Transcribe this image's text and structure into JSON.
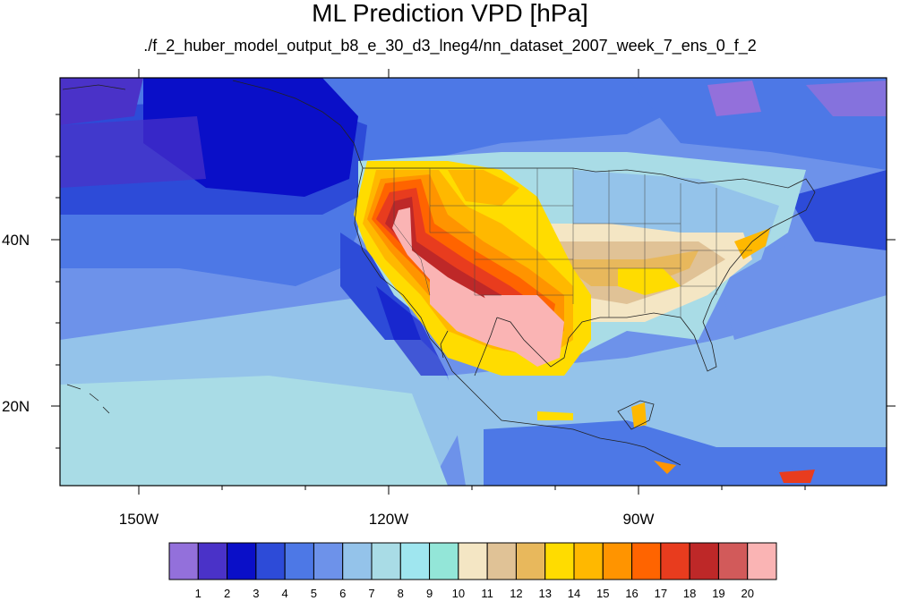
{
  "title": "ML Prediction VPD [hPa]",
  "subtitle": "./f_2_huber_model_output_b8_e_30_d3_lneg4/nn_dataset_2007_week_7_ens_0_f_2",
  "lat_labels": [
    "40N",
    "20N"
  ],
  "lon_labels": [
    "150W",
    "120W",
    "90W"
  ],
  "colorbar": {
    "labels": [
      "1",
      "2",
      "3",
      "4",
      "5",
      "6",
      "7",
      "8",
      "9",
      "10",
      "11",
      "12",
      "13",
      "14",
      "15",
      "16",
      "17",
      "18",
      "19",
      "20"
    ],
    "colors": [
      "#9370db",
      "#4a32c8",
      "#0a0fc8",
      "#2d4bd8",
      "#4d78e6",
      "#6d92ea",
      "#94c3ea",
      "#a9dce6",
      "#9fe6ef",
      "#93e6d8",
      "#f4e6c4",
      "#e0c296",
      "#e8b85c",
      "#ffdc00",
      "#ffb800",
      "#ff9400",
      "#ff6400",
      "#e83c1e",
      "#be2828",
      "#d25a5a",
      "#fab4b4"
    ]
  }
}
